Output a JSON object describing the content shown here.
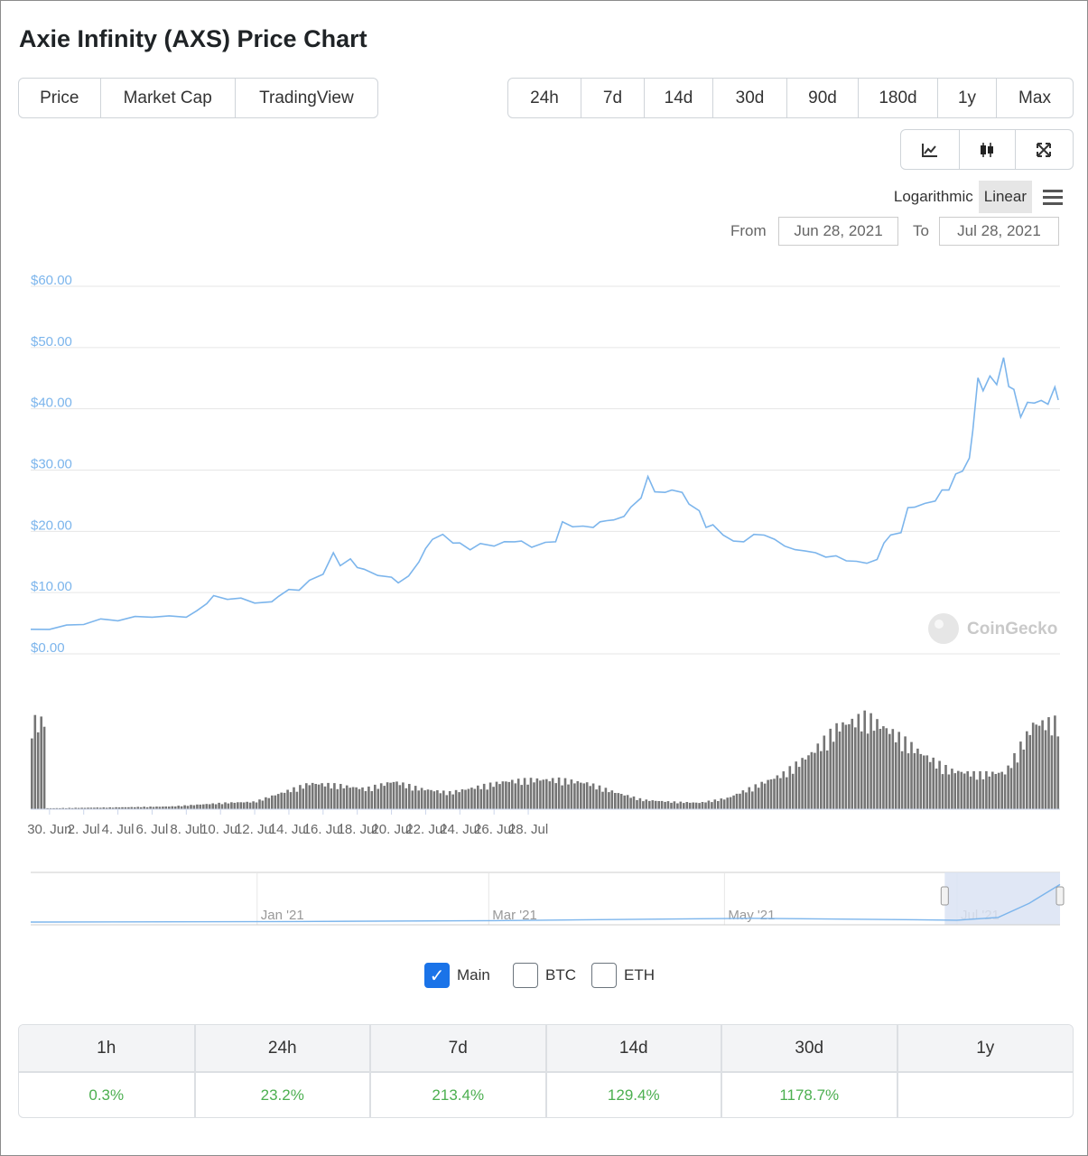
{
  "title": "Axie Infinity (AXS) Price Chart",
  "tabs": [
    {
      "label": "Price",
      "active": true
    },
    {
      "label": "Market Cap",
      "active": false
    },
    {
      "label": "TradingView",
      "active": false
    }
  ],
  "ranges": [
    {
      "label": "24h",
      "active": false
    },
    {
      "label": "7d",
      "active": false
    },
    {
      "label": "14d",
      "active": false
    },
    {
      "label": "30d",
      "active": true
    },
    {
      "label": "90d",
      "active": false
    },
    {
      "label": "180d",
      "active": false
    },
    {
      "label": "1y",
      "active": false
    },
    {
      "label": "Max",
      "active": false
    }
  ],
  "chart_types": [
    {
      "icon": "line-chart-icon",
      "active": true
    },
    {
      "icon": "candlestick-icon",
      "active": false
    },
    {
      "icon": "fullscreen-icon",
      "active": false
    }
  ],
  "scale": {
    "logarithmic": "Logarithmic",
    "linear": "Linear",
    "active": "Linear",
    "menu_icon": "hamburger-menu-icon"
  },
  "date_range": {
    "from_label": "From",
    "from": "Jun 28, 2021",
    "to_label": "To",
    "to": "Jul 28, 2021"
  },
  "watermark": "CoinGecko",
  "colors": {
    "price_line": "#7cb5ec",
    "volume": "#757575",
    "axis_text": "#7cb5ec",
    "navigator_selection": "#dbe3f3",
    "positive": "#4caf50",
    "checkbox_on": "#1a73e8"
  },
  "chart_data": {
    "type": "line",
    "title": "",
    "y_axis": {
      "labels": [
        "$60.00",
        "$50.00",
        "$40.00",
        "$30.00",
        "$20.00",
        "$10.00",
        "$0.00"
      ],
      "ylim": [
        0,
        60
      ]
    },
    "x_axis": {
      "labels": [
        "30. Jun",
        "2. Jul",
        "4. Jul",
        "6. Jul",
        "8. Jul",
        "10. Jul",
        "12. Jul",
        "14. Jul",
        "16. Jul",
        "18. Jul",
        "20. Jul",
        "22. Jul",
        "24. Jul",
        "26. Jul",
        "28. Jul"
      ],
      "day_ticks": [
        2,
        4,
        6,
        8,
        10,
        12,
        14,
        16,
        18,
        20,
        22,
        24,
        26,
        28,
        30
      ],
      "xlim_days": [
        0.45,
        30.55
      ]
    },
    "series": [
      {
        "type": "line",
        "points": [
          [
            0.45,
            3.8
          ],
          [
            1,
            4.2
          ],
          [
            1.5,
            4.5
          ],
          [
            2,
            5.0
          ],
          [
            2.5,
            5.5
          ],
          [
            3,
            5.6
          ],
          [
            3.5,
            5.9
          ],
          [
            4,
            6.2
          ],
          [
            4.5,
            6.0
          ],
          [
            5,
            6.2
          ],
          [
            5.3,
            6.8
          ],
          [
            5.6,
            8.4
          ],
          [
            5.8,
            9.3
          ],
          [
            6.2,
            9.1
          ],
          [
            6.6,
            8.9
          ],
          [
            7,
            8.5
          ],
          [
            7.5,
            8.3
          ],
          [
            7.7,
            9.6
          ],
          [
            8,
            10.3
          ],
          [
            8.3,
            10.6
          ],
          [
            8.6,
            11.8
          ],
          [
            9,
            13.2
          ],
          [
            9.3,
            16.3
          ],
          [
            9.5,
            14.6
          ],
          [
            9.8,
            15.3
          ],
          [
            10,
            14.3
          ],
          [
            10.2,
            13.6
          ],
          [
            10.6,
            13.0
          ],
          [
            11,
            12.3
          ],
          [
            11.2,
            11.8
          ],
          [
            11.5,
            12.5
          ],
          [
            11.8,
            15.2
          ],
          [
            12,
            17.0
          ],
          [
            12.2,
            18.9
          ],
          [
            12.5,
            19.3
          ],
          [
            12.8,
            18.3
          ],
          [
            13,
            17.9
          ],
          [
            13.3,
            17.2
          ],
          [
            13.6,
            17.8
          ],
          [
            14,
            17.8
          ],
          [
            14.3,
            18.1
          ],
          [
            14.6,
            18.5
          ],
          [
            14.8,
            18.2
          ],
          [
            15.1,
            17.6
          ],
          [
            15.5,
            18.0
          ],
          [
            15.8,
            18.5
          ],
          [
            16,
            21.0
          ],
          [
            16.3,
            21.3
          ],
          [
            16.6,
            20.3
          ],
          [
            16.9,
            21.2
          ],
          [
            17.1,
            21.0
          ],
          [
            17.3,
            22.3
          ],
          [
            17.5,
            21.3
          ],
          [
            17.8,
            23.0
          ],
          [
            18,
            23.4
          ],
          [
            18.3,
            26.0
          ],
          [
            18.5,
            28.4
          ],
          [
            18.7,
            27.0
          ],
          [
            19,
            25.8
          ],
          [
            19.2,
            27.3
          ],
          [
            19.5,
            25.8
          ],
          [
            19.7,
            25.0
          ],
          [
            20,
            22.8
          ],
          [
            20.2,
            21.2
          ],
          [
            20.4,
            20.5
          ],
          [
            20.7,
            19.6
          ],
          [
            21,
            18.2
          ],
          [
            21.3,
            18.5
          ],
          [
            21.6,
            19.3
          ],
          [
            21.9,
            19.6
          ],
          [
            22.2,
            18.5
          ],
          [
            22.5,
            17.8
          ],
          [
            22.8,
            16.8
          ],
          [
            23.1,
            17.0
          ],
          [
            23.4,
            16.3
          ],
          [
            23.7,
            16.0
          ],
          [
            24,
            15.8
          ],
          [
            24.3,
            15.4
          ],
          [
            24.6,
            14.9
          ],
          [
            24.9,
            15.0
          ],
          [
            25.2,
            15.2
          ],
          [
            25.4,
            18.3
          ],
          [
            25.6,
            19.2
          ],
          [
            25.9,
            20.0
          ],
          [
            26.1,
            23.3
          ],
          [
            26.3,
            24.5
          ],
          [
            26.6,
            24.0
          ],
          [
            26.9,
            25.5
          ],
          [
            27.1,
            26.2
          ],
          [
            27.3,
            27.3
          ],
          [
            27.5,
            28.8
          ],
          [
            27.7,
            30.4
          ],
          [
            27.9,
            31.4
          ],
          [
            28.0,
            37.0
          ],
          [
            28.15,
            44.5
          ],
          [
            28.3,
            43.5
          ],
          [
            28.5,
            44.8
          ],
          [
            28.7,
            44.5
          ],
          [
            28.9,
            47.8
          ],
          [
            29.05,
            44.2
          ],
          [
            29.2,
            42.6
          ],
          [
            29.4,
            39.2
          ],
          [
            29.6,
            40.5
          ],
          [
            29.8,
            41.5
          ],
          [
            30.0,
            40.8
          ],
          [
            30.2,
            41.3
          ],
          [
            30.4,
            43.0
          ],
          [
            30.5,
            42.0
          ]
        ]
      },
      {
        "type": "volume",
        "points": [
          [
            0.45,
            0.01
          ],
          [
            3,
            0.02
          ],
          [
            5,
            0.03
          ],
          [
            7,
            0.07
          ],
          [
            8,
            0.08
          ],
          [
            9,
            0.18
          ],
          [
            10,
            0.28
          ],
          [
            11,
            0.26
          ],
          [
            12,
            0.22
          ],
          [
            13,
            0.3
          ],
          [
            14,
            0.22
          ],
          [
            15,
            0.18
          ],
          [
            16,
            0.24
          ],
          [
            17,
            0.3
          ],
          [
            18,
            0.32
          ],
          [
            19,
            0.32
          ],
          [
            20,
            0.28
          ],
          [
            21,
            0.18
          ],
          [
            22,
            0.1
          ],
          [
            23,
            0.08
          ],
          [
            24,
            0.07
          ],
          [
            25,
            0.12
          ],
          [
            26,
            0.25
          ],
          [
            27,
            0.38
          ],
          [
            28,
            0.6
          ],
          [
            29,
            0.9
          ],
          [
            30,
            1.0
          ],
          [
            31,
            0.82
          ],
          [
            32,
            0.6
          ],
          [
            33,
            0.42
          ],
          [
            34,
            0.38
          ],
          [
            35,
            0.4
          ],
          [
            36,
            0.92
          ],
          [
            37,
            0.95
          ]
        ]
      },
      {
        "type": "navigator",
        "points": [
          [
            0,
            0.02
          ],
          [
            0.25,
            0.03
          ],
          [
            0.45,
            0.05
          ],
          [
            0.6,
            0.08
          ],
          [
            0.7,
            0.1
          ],
          [
            0.8,
            0.08
          ],
          [
            0.9,
            0.06
          ],
          [
            0.94,
            0.12
          ],
          [
            0.97,
            0.42
          ],
          [
            1.0,
            0.82
          ]
        ]
      }
    ],
    "navigator": {
      "labels": [
        "Jan '21",
        "Mar '21",
        "May '21",
        "Jul '21"
      ]
    }
  },
  "series_toggles": [
    {
      "label": "Main",
      "checked": true
    },
    {
      "label": "BTC",
      "checked": false
    },
    {
      "label": "ETH",
      "checked": false
    }
  ],
  "performance": {
    "headers": [
      "1h",
      "24h",
      "7d",
      "14d",
      "30d",
      "1y"
    ],
    "values": [
      "0.3%",
      "23.2%",
      "213.4%",
      "129.4%",
      "1178.7%",
      ""
    ]
  }
}
